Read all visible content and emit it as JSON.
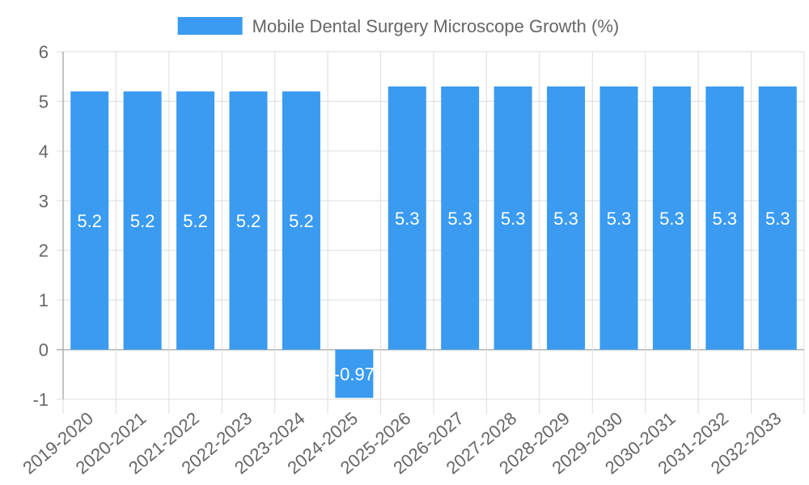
{
  "chart_data": {
    "type": "bar",
    "categories": [
      "2019-2020",
      "2020-2021",
      "2021-2022",
      "2022-2023",
      "2023-2024",
      "2024-2025",
      "2025-2026",
      "2026-2027",
      "2027-2028",
      "2028-2029",
      "2029-2030",
      "2030-2031",
      "2031-2032",
      "2032-2033"
    ],
    "series": [
      {
        "name": "Mobile Dental Surgery Microscope Growth (%)",
        "values": [
          5.2,
          5.2,
          5.2,
          5.2,
          5.2,
          -0.97,
          5.3,
          5.3,
          5.3,
          5.3,
          5.3,
          5.3,
          5.3,
          5.3
        ],
        "color": "#3a9bf0"
      }
    ],
    "data_labels": [
      "5.2",
      "5.2",
      "5.2",
      "5.2",
      "5.2",
      "-0.97",
      "5.3",
      "5.3",
      "5.3",
      "5.3",
      "5.3",
      "5.3",
      "5.3",
      "5.3"
    ],
    "y_ticks": [
      "-1",
      "0",
      "1",
      "2",
      "3",
      "4",
      "5",
      "6"
    ],
    "ylim": [
      -1,
      6
    ],
    "grid": true,
    "legend_position": "top",
    "xlabel": "",
    "ylabel": ""
  }
}
